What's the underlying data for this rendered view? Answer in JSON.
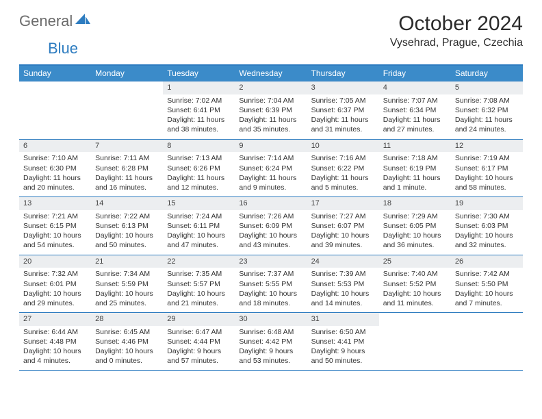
{
  "brand": {
    "name_part1": "General",
    "name_part2": "Blue",
    "text_color": "#6b6b6b",
    "accent_color": "#2d7cc0"
  },
  "header": {
    "title": "October 2024",
    "location": "Vysehrad, Prague, Czechia"
  },
  "styling": {
    "header_bg": "#3b8bc9",
    "header_text": "#ffffff",
    "daynum_bg": "#eceef0",
    "border_color": "#2d7cc0",
    "body_text": "#333333",
    "page_bg": "#ffffff",
    "title_fontsize": 30,
    "location_fontsize": 16,
    "weekday_fontsize": 12,
    "cell_fontsize": 10.5
  },
  "weekdays": [
    "Sunday",
    "Monday",
    "Tuesday",
    "Wednesday",
    "Thursday",
    "Friday",
    "Saturday"
  ],
  "weeks": [
    [
      {
        "n": "",
        "sr": "",
        "ss": "",
        "dl": ""
      },
      {
        "n": "",
        "sr": "",
        "ss": "",
        "dl": ""
      },
      {
        "n": "1",
        "sr": "Sunrise: 7:02 AM",
        "ss": "Sunset: 6:41 PM",
        "dl": "Daylight: 11 hours and 38 minutes."
      },
      {
        "n": "2",
        "sr": "Sunrise: 7:04 AM",
        "ss": "Sunset: 6:39 PM",
        "dl": "Daylight: 11 hours and 35 minutes."
      },
      {
        "n": "3",
        "sr": "Sunrise: 7:05 AM",
        "ss": "Sunset: 6:37 PM",
        "dl": "Daylight: 11 hours and 31 minutes."
      },
      {
        "n": "4",
        "sr": "Sunrise: 7:07 AM",
        "ss": "Sunset: 6:34 PM",
        "dl": "Daylight: 11 hours and 27 minutes."
      },
      {
        "n": "5",
        "sr": "Sunrise: 7:08 AM",
        "ss": "Sunset: 6:32 PM",
        "dl": "Daylight: 11 hours and 24 minutes."
      }
    ],
    [
      {
        "n": "6",
        "sr": "Sunrise: 7:10 AM",
        "ss": "Sunset: 6:30 PM",
        "dl": "Daylight: 11 hours and 20 minutes."
      },
      {
        "n": "7",
        "sr": "Sunrise: 7:11 AM",
        "ss": "Sunset: 6:28 PM",
        "dl": "Daylight: 11 hours and 16 minutes."
      },
      {
        "n": "8",
        "sr": "Sunrise: 7:13 AM",
        "ss": "Sunset: 6:26 PM",
        "dl": "Daylight: 11 hours and 12 minutes."
      },
      {
        "n": "9",
        "sr": "Sunrise: 7:14 AM",
        "ss": "Sunset: 6:24 PM",
        "dl": "Daylight: 11 hours and 9 minutes."
      },
      {
        "n": "10",
        "sr": "Sunrise: 7:16 AM",
        "ss": "Sunset: 6:22 PM",
        "dl": "Daylight: 11 hours and 5 minutes."
      },
      {
        "n": "11",
        "sr": "Sunrise: 7:18 AM",
        "ss": "Sunset: 6:19 PM",
        "dl": "Daylight: 11 hours and 1 minute."
      },
      {
        "n": "12",
        "sr": "Sunrise: 7:19 AM",
        "ss": "Sunset: 6:17 PM",
        "dl": "Daylight: 10 hours and 58 minutes."
      }
    ],
    [
      {
        "n": "13",
        "sr": "Sunrise: 7:21 AM",
        "ss": "Sunset: 6:15 PM",
        "dl": "Daylight: 10 hours and 54 minutes."
      },
      {
        "n": "14",
        "sr": "Sunrise: 7:22 AM",
        "ss": "Sunset: 6:13 PM",
        "dl": "Daylight: 10 hours and 50 minutes."
      },
      {
        "n": "15",
        "sr": "Sunrise: 7:24 AM",
        "ss": "Sunset: 6:11 PM",
        "dl": "Daylight: 10 hours and 47 minutes."
      },
      {
        "n": "16",
        "sr": "Sunrise: 7:26 AM",
        "ss": "Sunset: 6:09 PM",
        "dl": "Daylight: 10 hours and 43 minutes."
      },
      {
        "n": "17",
        "sr": "Sunrise: 7:27 AM",
        "ss": "Sunset: 6:07 PM",
        "dl": "Daylight: 10 hours and 39 minutes."
      },
      {
        "n": "18",
        "sr": "Sunrise: 7:29 AM",
        "ss": "Sunset: 6:05 PM",
        "dl": "Daylight: 10 hours and 36 minutes."
      },
      {
        "n": "19",
        "sr": "Sunrise: 7:30 AM",
        "ss": "Sunset: 6:03 PM",
        "dl": "Daylight: 10 hours and 32 minutes."
      }
    ],
    [
      {
        "n": "20",
        "sr": "Sunrise: 7:32 AM",
        "ss": "Sunset: 6:01 PM",
        "dl": "Daylight: 10 hours and 29 minutes."
      },
      {
        "n": "21",
        "sr": "Sunrise: 7:34 AM",
        "ss": "Sunset: 5:59 PM",
        "dl": "Daylight: 10 hours and 25 minutes."
      },
      {
        "n": "22",
        "sr": "Sunrise: 7:35 AM",
        "ss": "Sunset: 5:57 PM",
        "dl": "Daylight: 10 hours and 21 minutes."
      },
      {
        "n": "23",
        "sr": "Sunrise: 7:37 AM",
        "ss": "Sunset: 5:55 PM",
        "dl": "Daylight: 10 hours and 18 minutes."
      },
      {
        "n": "24",
        "sr": "Sunrise: 7:39 AM",
        "ss": "Sunset: 5:53 PM",
        "dl": "Daylight: 10 hours and 14 minutes."
      },
      {
        "n": "25",
        "sr": "Sunrise: 7:40 AM",
        "ss": "Sunset: 5:52 PM",
        "dl": "Daylight: 10 hours and 11 minutes."
      },
      {
        "n": "26",
        "sr": "Sunrise: 7:42 AM",
        "ss": "Sunset: 5:50 PM",
        "dl": "Daylight: 10 hours and 7 minutes."
      }
    ],
    [
      {
        "n": "27",
        "sr": "Sunrise: 6:44 AM",
        "ss": "Sunset: 4:48 PM",
        "dl": "Daylight: 10 hours and 4 minutes."
      },
      {
        "n": "28",
        "sr": "Sunrise: 6:45 AM",
        "ss": "Sunset: 4:46 PM",
        "dl": "Daylight: 10 hours and 0 minutes."
      },
      {
        "n": "29",
        "sr": "Sunrise: 6:47 AM",
        "ss": "Sunset: 4:44 PM",
        "dl": "Daylight: 9 hours and 57 minutes."
      },
      {
        "n": "30",
        "sr": "Sunrise: 6:48 AM",
        "ss": "Sunset: 4:42 PM",
        "dl": "Daylight: 9 hours and 53 minutes."
      },
      {
        "n": "31",
        "sr": "Sunrise: 6:50 AM",
        "ss": "Sunset: 4:41 PM",
        "dl": "Daylight: 9 hours and 50 minutes."
      },
      {
        "n": "",
        "sr": "",
        "ss": "",
        "dl": ""
      },
      {
        "n": "",
        "sr": "",
        "ss": "",
        "dl": ""
      }
    ]
  ]
}
